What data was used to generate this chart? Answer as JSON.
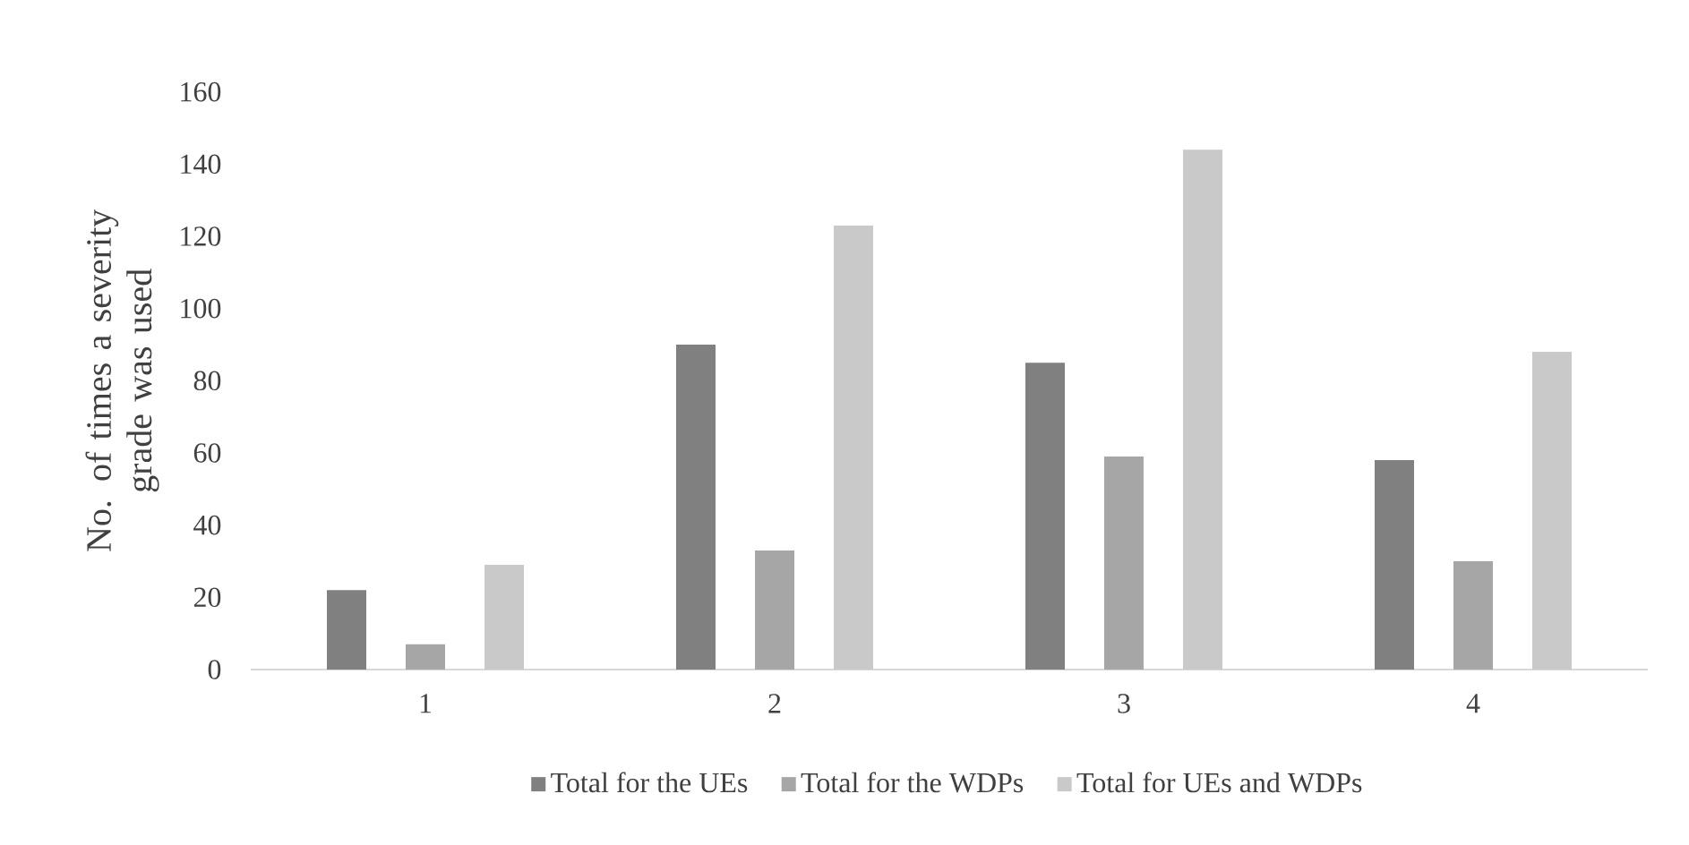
{
  "chart_data": {
    "type": "bar",
    "categories": [
      "1",
      "2",
      "3",
      "4"
    ],
    "ylabel": "No. of times a severity grade was used",
    "ylim": [
      0,
      160
    ],
    "yticks": [
      0,
      20,
      40,
      60,
      80,
      100,
      120,
      140,
      160
    ],
    "legend": "bottom",
    "series": [
      {
        "name": "Total for the UEs",
        "color": "#808080",
        "values": [
          22,
          90,
          85,
          58
        ]
      },
      {
        "name": "Total for the WDPs",
        "color": "#a6a6a6",
        "values": [
          7,
          33,
          59,
          30
        ]
      },
      {
        "name": "Total for UEs and WDPs",
        "color": "#c9c9c9",
        "values": [
          29,
          123,
          144,
          88
        ]
      }
    ]
  }
}
